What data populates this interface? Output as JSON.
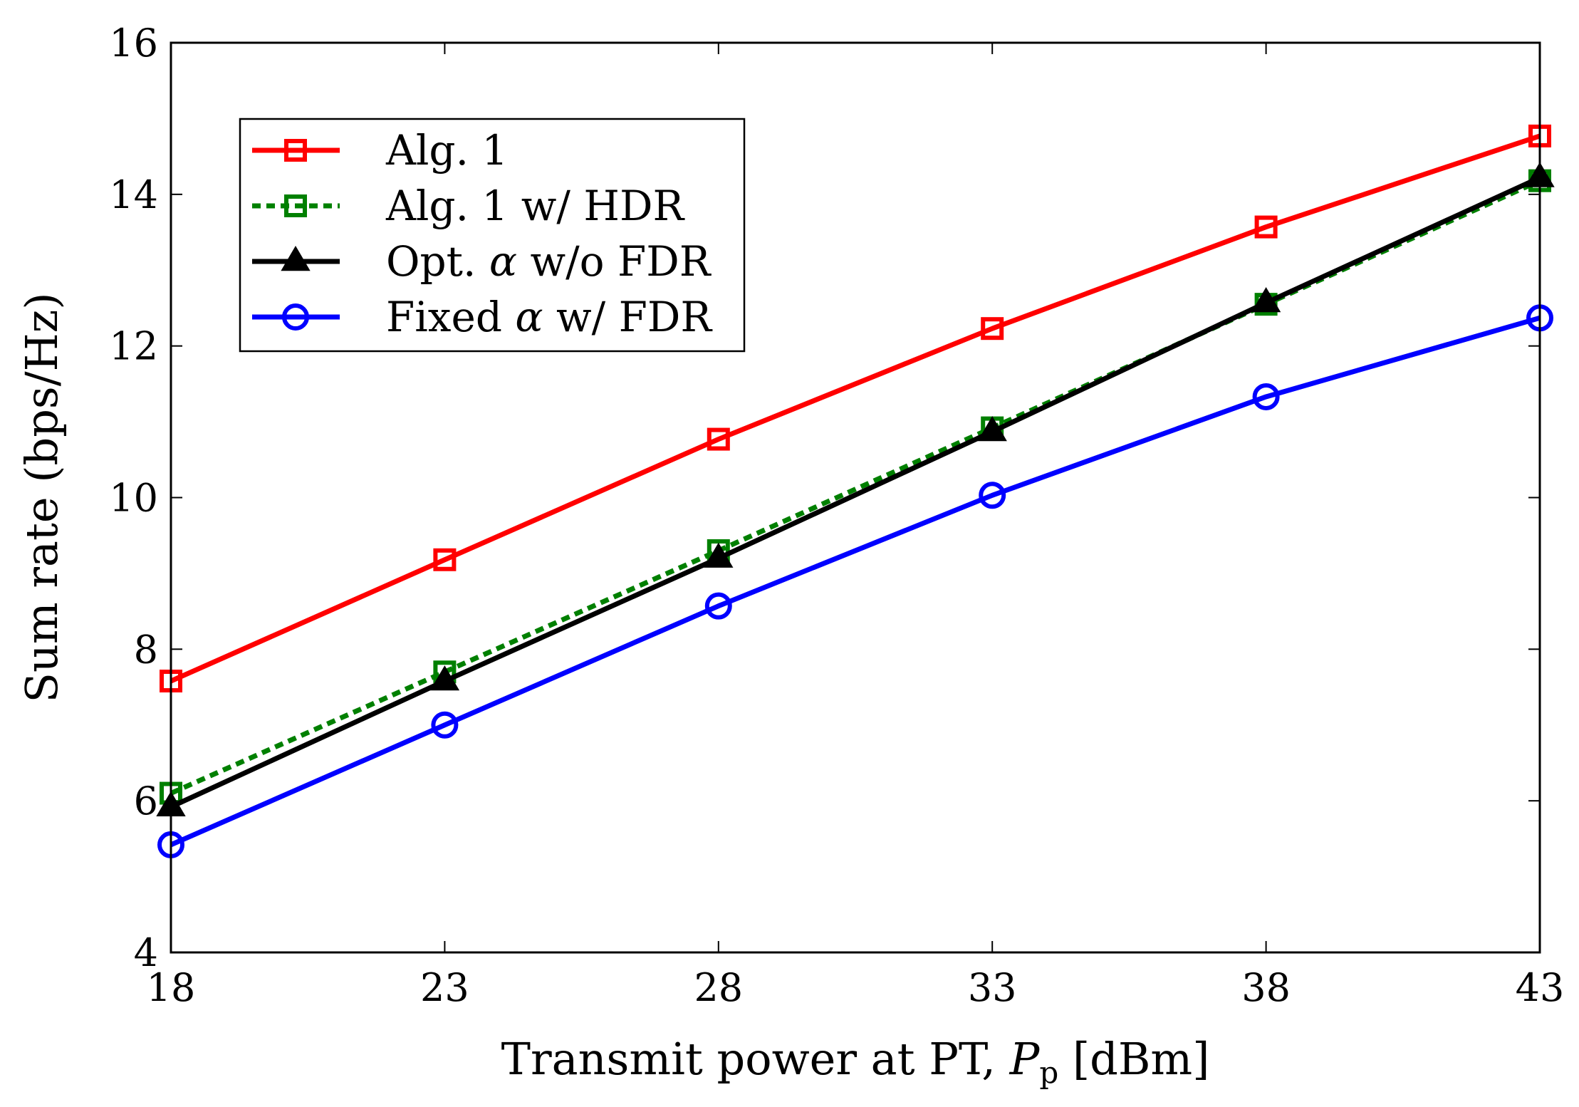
{
  "chart_data": {
    "type": "line",
    "title": "",
    "xlabel": "Transmit power at PT, P_p [dBm]",
    "xlabel_parts": {
      "main": "Transmit power at PT, ",
      "symbol": "P",
      "subscript": "p",
      "unit": " [dBm]"
    },
    "ylabel": "Sum rate (bps/Hz)",
    "xlim": [
      18,
      43
    ],
    "ylim": [
      4,
      16
    ],
    "x": [
      18,
      23,
      28,
      33,
      38,
      43
    ],
    "xticks": [
      "18",
      "23",
      "28",
      "33",
      "38",
      "43"
    ],
    "yticks": [
      "4",
      "6",
      "8",
      "10",
      "12",
      "14",
      "16"
    ],
    "legend_position": "top-left",
    "grid": false,
    "series": [
      {
        "name": "Alg. 1",
        "label_parts": [
          "Alg. 1"
        ],
        "values": [
          7.58,
          9.18,
          10.77,
          12.23,
          13.57,
          14.77
        ],
        "color": "#ff0000",
        "marker": "square",
        "dash": "solid"
      },
      {
        "name": "Alg. 1 w/ HDR",
        "label_parts": [
          "Alg. 1 w/ HDR"
        ],
        "values": [
          6.1,
          7.7,
          9.3,
          10.92,
          12.55,
          14.18
        ],
        "color": "#008000",
        "marker": "square",
        "dash": "dotted"
      },
      {
        "name": "Opt. α w/o FDR",
        "label_parts": [
          "Opt. ",
          "α",
          " w/o FDR"
        ],
        "values": [
          5.92,
          7.58,
          9.2,
          10.87,
          12.57,
          14.22
        ],
        "color": "#000000",
        "marker": "triangle",
        "dash": "solid"
      },
      {
        "name": "Fixed α w/ FDR",
        "label_parts": [
          "Fixed ",
          "α",
          " w/ FDR"
        ],
        "values": [
          5.42,
          7.0,
          8.57,
          10.03,
          11.33,
          12.37
        ],
        "color": "#0000ff",
        "marker": "circle",
        "dash": "solid"
      }
    ]
  }
}
